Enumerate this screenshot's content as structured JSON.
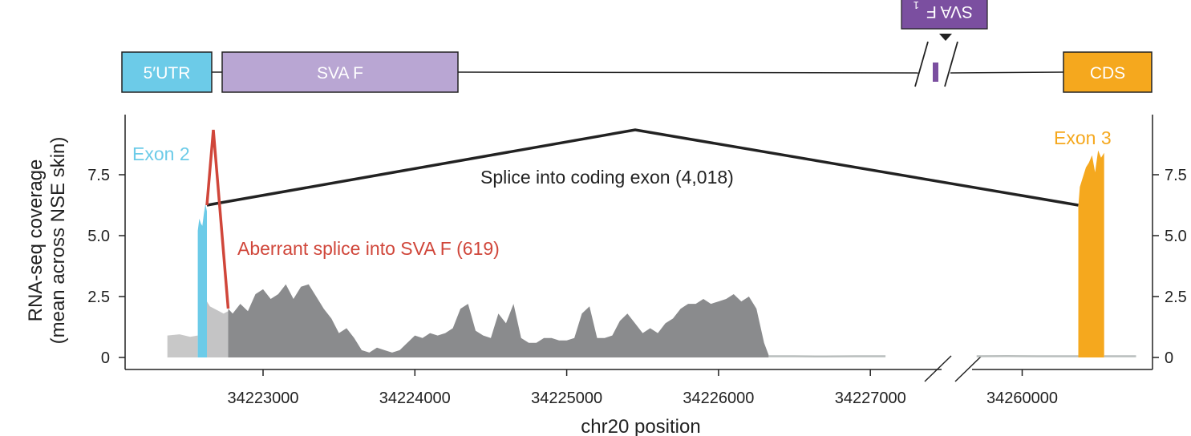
{
  "gene_model": {
    "utr_label": "5′UTR",
    "sva_label": "SVA F",
    "cds_label": "CDS",
    "sva_inverted_label": "SVA F",
    "sva_inverted_sub": "1",
    "colors": {
      "utr": "#6ccbe8",
      "sva": "#b9a6d3",
      "cds": "#f5a81e",
      "sva_small": "#7b4fa0"
    }
  },
  "chart_data": {
    "type": "area",
    "title": "",
    "xlabel": "chr20 position",
    "ylabel_line1": "RNA-seq coverage",
    "ylabel_line2": "(mean across NSE skin)",
    "ylim": [
      0,
      10
    ],
    "y_ticks": [
      {
        "value": 0,
        "label": "0"
      },
      {
        "value": 2.5,
        "label": "2.5"
      },
      {
        "value": 5.0,
        "label": "5.0"
      },
      {
        "value": 7.5,
        "label": "7.5"
      }
    ],
    "x_ticks_left": [
      {
        "value": 34223000,
        "label": "34223000"
      },
      {
        "value": 34224000,
        "label": "34224000"
      },
      {
        "value": 34225000,
        "label": "34225000"
      },
      {
        "value": 34226000,
        "label": "34226000"
      },
      {
        "value": 34227000,
        "label": "34227000"
      }
    ],
    "x_ticks_right": [
      {
        "value": 34260000,
        "label": "34260000"
      }
    ],
    "axis_break": true,
    "grid": false,
    "annotations": {
      "exon2": "Exon 2",
      "exon3": "Exon 3",
      "coding_splice": "Splice into coding exon (4,018)",
      "aberrant_splice": "Aberrant splice into SVA F (619)"
    },
    "colors": {
      "exon2": "#6ccbe8",
      "exon3": "#f5a81e",
      "sva_region": "#c4c4c5",
      "intron_coverage": "#8a8b8d",
      "light_coverage": "#c8c8c8",
      "baseline": "#b9bebd",
      "coding_arc": "#222222",
      "aberrant_arc": "#d0463a"
    },
    "series": [
      {
        "name": "",
        "region": "upstream",
        "x": [
          34222370,
          34222450,
          34222520,
          34222570
        ],
        "y": [
          0.9,
          0.95,
          0.85,
          0.9
        ]
      },
      {
        "name": "Exon 2",
        "region": "exon2",
        "x": [
          34222570,
          34222580,
          34222590,
          34222600,
          34222610,
          34222620,
          34222630
        ],
        "y": [
          5.2,
          5.7,
          5.5,
          5.4,
          5.9,
          6.3,
          6.0
        ]
      },
      {
        "name": "",
        "region": "sva",
        "x": [
          34222630,
          34222650,
          34222680,
          34222710,
          34222740,
          34222770
        ],
        "y": [
          2.3,
          2.1,
          2.0,
          1.9,
          1.8,
          1.9
        ]
      },
      {
        "name": "",
        "region": "intron",
        "x": [
          34222770,
          34222800,
          34222850,
          34222900,
          34222950,
          34223000,
          34223050,
          34223100,
          34223150,
          34223200,
          34223250,
          34223300,
          34223350,
          34223400,
          34223450,
          34223500,
          34223550,
          34223600,
          34223650,
          34223700,
          34223750,
          34223800,
          34223850,
          34223900,
          34223950,
          34224000,
          34224050,
          34224100,
          34224150,
          34224200,
          34224250,
          34224300,
          34224350,
          34224400,
          34224450,
          34224500,
          34224550,
          34224600,
          34224650,
          34224700,
          34224750,
          34224800,
          34224850,
          34224900,
          34224950,
          34225000,
          34225050,
          34225100,
          34225150,
          34225200,
          34225250,
          34225300,
          34225350,
          34225400,
          34225450,
          34225500,
          34225550,
          34225600,
          34225650,
          34225700,
          34225750,
          34225800,
          34225850,
          34225900,
          34225950,
          34226000,
          34226050,
          34226100,
          34226150,
          34226200,
          34226250,
          34226300,
          34226330
        ],
        "y": [
          2.0,
          1.8,
          2.2,
          1.9,
          2.6,
          2.8,
          2.4,
          2.6,
          3.0,
          2.4,
          2.9,
          3.0,
          2.5,
          2.0,
          1.6,
          1.0,
          1.2,
          0.8,
          0.3,
          0.2,
          0.4,
          0.3,
          0.2,
          0.3,
          0.6,
          0.9,
          0.8,
          1.0,
          0.9,
          1.0,
          1.2,
          2.0,
          2.2,
          1.1,
          0.9,
          0.8,
          1.8,
          1.4,
          2.2,
          0.8,
          0.6,
          0.6,
          0.8,
          0.8,
          0.7,
          0.7,
          0.8,
          1.8,
          2.1,
          0.8,
          0.8,
          0.9,
          1.5,
          1.8,
          1.4,
          1.0,
          1.2,
          1.0,
          1.4,
          1.6,
          2.0,
          2.2,
          2.2,
          2.4,
          2.2,
          2.3,
          2.4,
          2.6,
          2.3,
          2.5,
          2.0,
          0.6,
          0.1
        ]
      },
      {
        "name": "",
        "region": "intron_tail",
        "x": [
          34226330,
          34226500,
          34226700,
          34226900,
          34227100
        ],
        "y": [
          0.05,
          0.05,
          0.04,
          0.05,
          0.05
        ]
      },
      {
        "name": "",
        "region": "pre_exon3",
        "x": [
          34259700,
          34259900,
          34260100,
          34260300,
          34260370
        ],
        "y": [
          0.05,
          0.06,
          0.05,
          0.05,
          0.05
        ]
      },
      {
        "name": "Exon 3",
        "region": "exon3",
        "x": [
          34260370,
          34260380,
          34260400,
          34260420,
          34260440,
          34260460,
          34260480,
          34260500,
          34260520,
          34260540
        ],
        "y": [
          6.2,
          7.0,
          7.4,
          7.8,
          8.0,
          8.3,
          7.6,
          8.5,
          8.2,
          8.4
        ]
      },
      {
        "name": "",
        "region": "post_exon3",
        "x": [
          34260540,
          34260600,
          34260750
        ],
        "y": [
          0.05,
          0.05,
          0.05
        ]
      }
    ],
    "splice_arcs": [
      {
        "name": "coding",
        "from": 34222630,
        "to": 34260370,
        "count": 4018
      },
      {
        "name": "aberrant",
        "from": 34222630,
        "to": 34222770,
        "count": 619
      }
    ]
  }
}
